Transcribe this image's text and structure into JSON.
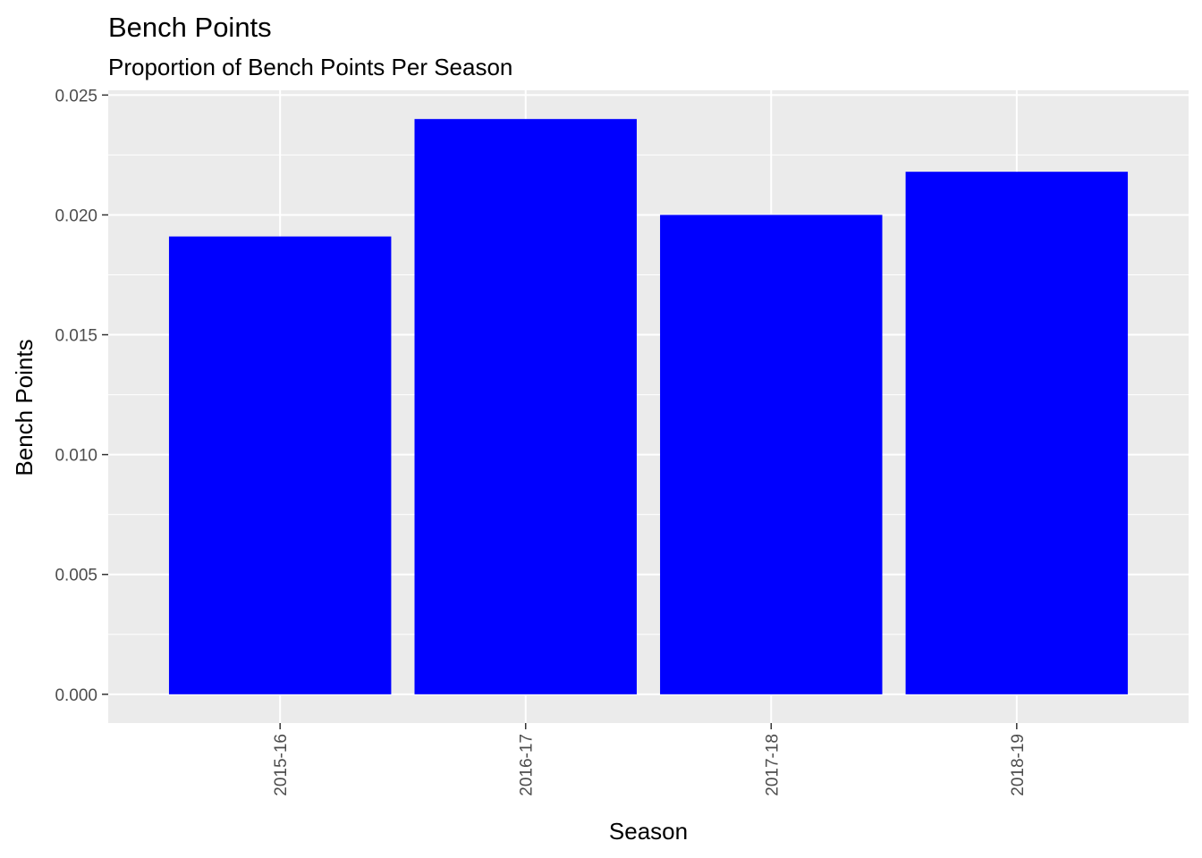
{
  "chart_data": {
    "type": "bar",
    "title": "Bench Points",
    "subtitle": "Proportion of Bench Points Per Season",
    "xlabel": "Season",
    "ylabel": "Bench Points",
    "categories": [
      "2015-16",
      "2016-17",
      "2017-18",
      "2018-19"
    ],
    "values": [
      0.0191,
      0.024,
      0.02,
      0.0218
    ],
    "ylim": [
      -0.0012,
      0.0252
    ],
    "yticks": [
      0.0,
      0.005,
      0.01,
      0.015,
      0.02,
      0.025
    ],
    "ytick_labels": [
      "0.000",
      "0.005",
      "0.010",
      "0.015",
      "0.020",
      "0.025"
    ],
    "grid": true,
    "bar_color": "#0000ff",
    "panel_color": "#ebebeb",
    "grid_color": "#ffffff",
    "tick_label_color": "#4d4d4d"
  }
}
